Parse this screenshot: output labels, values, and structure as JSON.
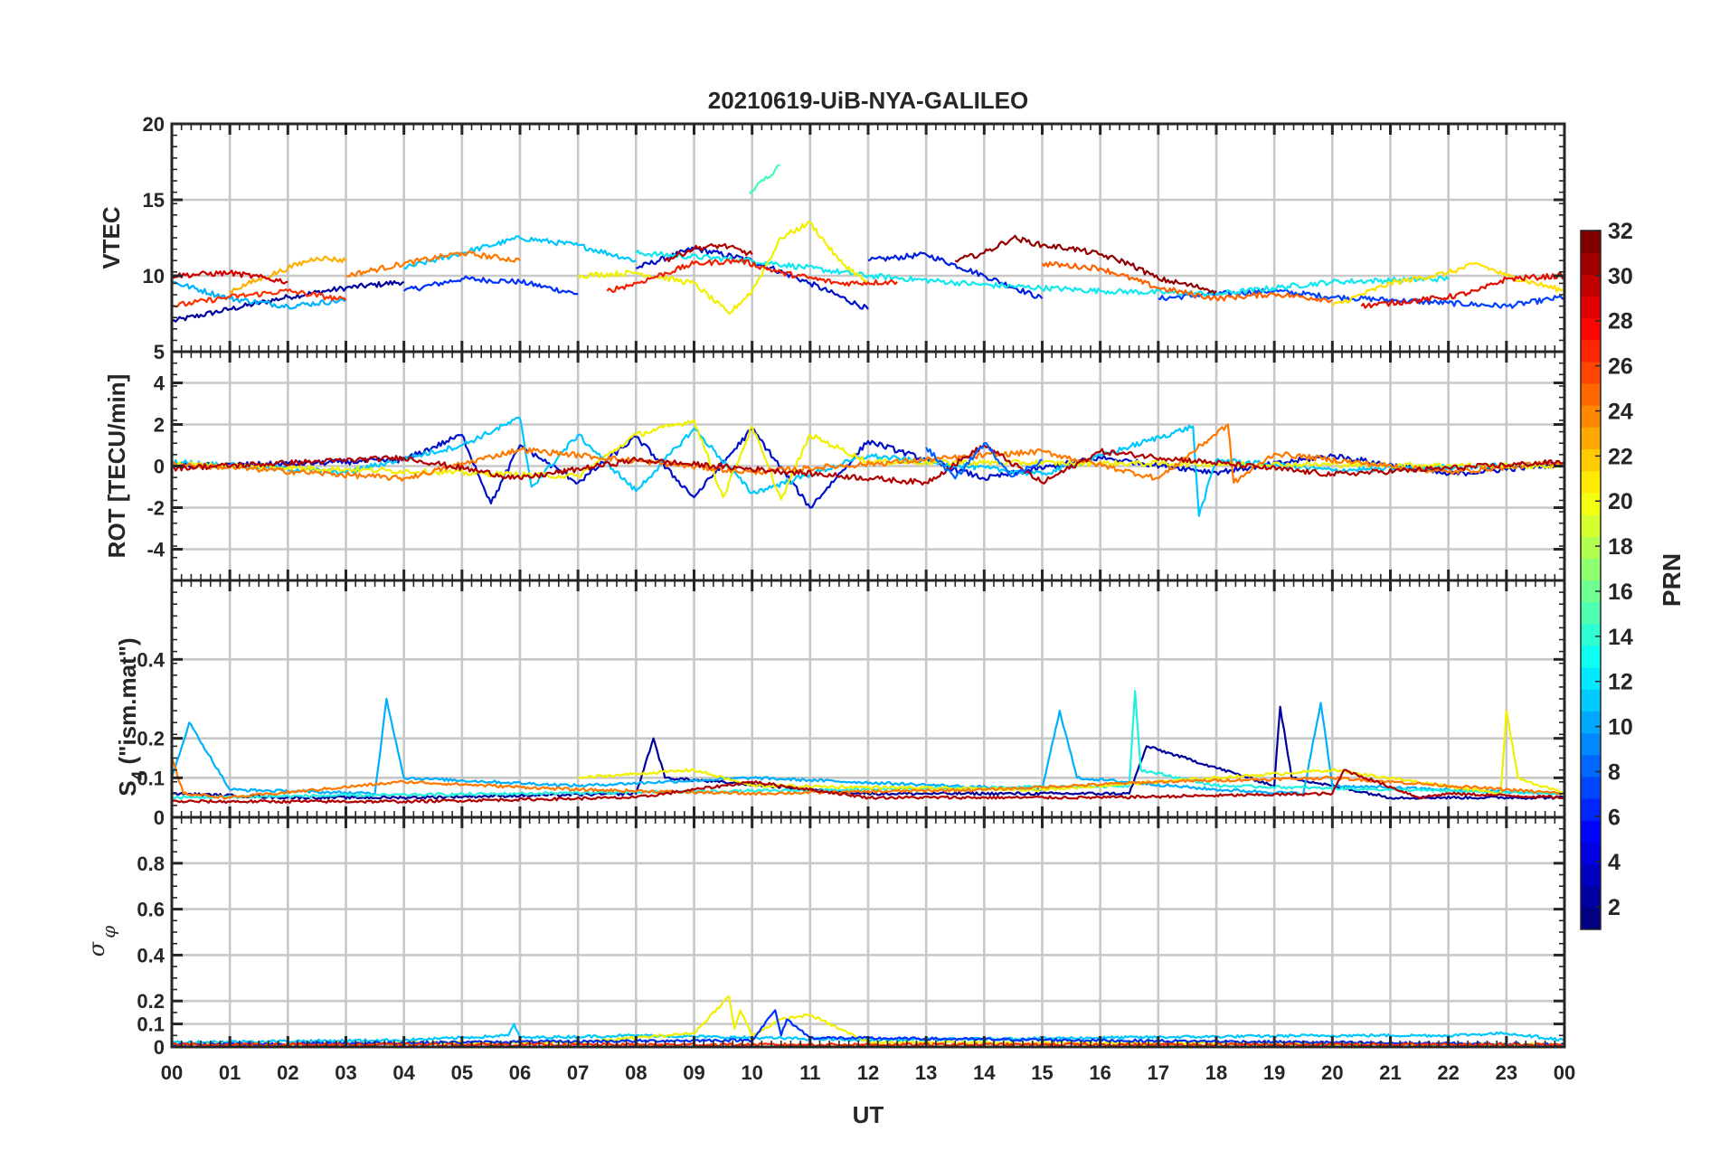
{
  "chart_data": {
    "type": "line",
    "title": "20210619-UiB-NYA-GALILEO",
    "xlabel": "UT",
    "x_tick_labels": [
      "00",
      "01",
      "02",
      "03",
      "04",
      "05",
      "06",
      "07",
      "08",
      "09",
      "10",
      "11",
      "12",
      "13",
      "14",
      "15",
      "16",
      "17",
      "18",
      "19",
      "20",
      "21",
      "22",
      "23",
      "00"
    ],
    "xlim_hours": [
      0,
      24
    ],
    "grid": true,
    "colorbar": {
      "label": "PRN",
      "range": [
        1,
        32
      ],
      "colormap": "jet",
      "ticks": [
        "2",
        "4",
        "6",
        "8",
        "10",
        "12",
        "14",
        "16",
        "18",
        "20",
        "22",
        "24",
        "26",
        "28",
        "30",
        "32"
      ]
    },
    "panels": [
      {
        "ylabel": "VTEC",
        "ylim": [
          5,
          20
        ],
        "yticks": [
          5,
          10,
          15,
          20
        ],
        "ytick_labels": [
          "5",
          "10",
          "15",
          "20"
        ],
        "series": [
          {
            "prn": 2,
            "color": "#00009c",
            "x": [
              0.0,
              1.0,
              2.0,
              3.0,
              4.0
            ],
            "y": [
              7.0,
              7.8,
              8.6,
              9.2,
              9.6
            ]
          },
          {
            "prn": 5,
            "color": "#0030ff",
            "x": [
              4.0,
              5.0,
              6.0,
              7.0
            ],
            "y": [
              9.0,
              9.8,
              9.6,
              8.8
            ]
          },
          {
            "prn": 3,
            "color": "#0010c8",
            "x": [
              8.0,
              9.0,
              10.0,
              11.0,
              12.0
            ],
            "y": [
              10.5,
              11.8,
              11.0,
              9.5,
              7.8
            ]
          },
          {
            "prn": 4,
            "color": "#0020e0",
            "x": [
              12.0,
              13.0,
              14.0,
              15.0
            ],
            "y": [
              11.0,
              11.4,
              10.0,
              8.5
            ]
          },
          {
            "prn": 6,
            "color": "#0040ff",
            "x": [
              17.0,
              18.0,
              19.0,
              20.0,
              21.0,
              22.0,
              23.0,
              24.0
            ],
            "y": [
              8.5,
              8.8,
              9.0,
              8.6,
              8.4,
              8.2,
              8.0,
              8.6
            ]
          },
          {
            "prn": 12,
            "color": "#00c8ff",
            "x": [
              4.0,
              5.0,
              6.0,
              7.0,
              8.0
            ],
            "y": [
              10.5,
              11.5,
              12.5,
              12.0,
              11.0
            ]
          },
          {
            "prn": 11,
            "color": "#00b0ff",
            "x": [
              0.0,
              1.0,
              2.0,
              3.0
            ],
            "y": [
              9.6,
              8.5,
              8.0,
              8.4
            ]
          },
          {
            "prn": 13,
            "color": "#10e8f0",
            "x": [
              8.0,
              10.0,
              12.0,
              14.0,
              16.0,
              18.0,
              20.0,
              22.0
            ],
            "y": [
              11.5,
              11.0,
              10.0,
              9.4,
              9.0,
              8.8,
              9.6,
              9.8
            ]
          },
          {
            "prn": 15,
            "color": "#40ffb0",
            "x": [
              9.95,
              10.0,
              10.4,
              10.48
            ],
            "y": [
              15.5,
              15.6,
              17.0,
              17.3
            ]
          },
          {
            "prn": 20,
            "color": "#f0f000",
            "x": [
              7.0,
              8.0,
              9.0,
              9.6,
              10.0,
              10.5,
              11.0,
              11.5,
              12.0
            ],
            "y": [
              10.0,
              10.2,
              9.5,
              7.5,
              9.0,
              12.5,
              13.5,
              11.0,
              9.5
            ]
          },
          {
            "prn": 21,
            "color": "#ffe000",
            "x": [
              20.0,
              21.0,
              22.0,
              22.5,
              23.0,
              24.0
            ],
            "y": [
              8.0,
              9.5,
              10.2,
              10.8,
              10.0,
              9.0
            ]
          },
          {
            "prn": 22,
            "color": "#ffb000",
            "x": [
              1.0,
              2.0,
              2.5,
              3.0
            ],
            "y": [
              9.0,
              10.5,
              11.2,
              11.0
            ]
          },
          {
            "prn": 24,
            "color": "#ff7800",
            "x": [
              3.0,
              4.0,
              5.0,
              6.0
            ],
            "y": [
              10.0,
              10.8,
              11.5,
              11.0
            ]
          },
          {
            "prn": 25,
            "color": "#ff6000",
            "x": [
              15.0,
              16.0,
              17.0,
              18.0,
              19.0,
              20.0
            ],
            "y": [
              10.8,
              10.5,
              9.2,
              8.5,
              8.8,
              8.4
            ]
          },
          {
            "prn": 27,
            "color": "#ff3000",
            "x": [
              0.0,
              1.0,
              2.0,
              3.0
            ],
            "y": [
              8.0,
              8.6,
              9.0,
              8.4
            ]
          },
          {
            "prn": 28,
            "color": "#f02000",
            "x": [
              7.5,
              8.0,
              9.0,
              9.8,
              10.5,
              11.5,
              12.5
            ],
            "y": [
              9.0,
              9.5,
              10.8,
              11.0,
              10.2,
              9.5,
              9.6
            ]
          },
          {
            "prn": 30,
            "color": "#d00000",
            "x": [
              0.0,
              1.0,
              2.0
            ],
            "y": [
              10.0,
              10.2,
              9.6
            ]
          },
          {
            "prn": 31,
            "color": "#b00000",
            "x": [
              8.5,
              9.0,
              9.5,
              10.0
            ],
            "y": [
              11.0,
              11.8,
              12.0,
              11.4
            ]
          },
          {
            "prn": 32,
            "color": "#900000",
            "x": [
              13.5,
              14.0,
              14.5,
              15.0,
              15.5,
              16.0,
              16.5,
              17.0,
              18.0
            ],
            "y": [
              11.0,
              11.5,
              12.5,
              12.0,
              11.8,
              11.4,
              10.8,
              9.8,
              9.0
            ]
          },
          {
            "prn": 29,
            "color": "#e01000",
            "x": [
              20.5,
              21.0,
              22.0,
              22.5,
              23.0,
              23.5,
              24.0
            ],
            "y": [
              8.0,
              8.2,
              8.6,
              9.0,
              9.8,
              9.9,
              10.0
            ]
          }
        ]
      },
      {
        "ylabel": "ROT [TECU/min]",
        "ylim": [
          -5.5,
          5.5
        ],
        "yticks": [
          -4,
          -2,
          0,
          2,
          4
        ],
        "ytick_labels": [
          "-4",
          "-2",
          "0",
          "2",
          "4"
        ],
        "series": [
          {
            "prn": 3,
            "color": "#0010c8",
            "x": [
              0.0,
              2.0,
              4.0,
              5.0,
              5.5,
              6.0,
              7.0,
              8.0,
              9.0,
              10.0,
              11.0,
              12.0,
              14.0,
              16.0,
              18.0,
              20.0,
              22.0,
              24.0
            ],
            "y": [
              0.0,
              0.1,
              0.3,
              1.5,
              -1.8,
              1.0,
              -0.8,
              1.4,
              -1.5,
              1.8,
              -2.0,
              1.2,
              -0.6,
              0.4,
              -0.3,
              0.5,
              -0.4,
              0.1
            ]
          },
          {
            "prn": 12,
            "color": "#00c8ff",
            "x": [
              0.0,
              3.0,
              5.0,
              6.0,
              6.2,
              7.0,
              8.0,
              9.0,
              10.0,
              12.0,
              15.0,
              17.6,
              17.7,
              18.0,
              20.0,
              24.0
            ],
            "y": [
              0.2,
              -0.3,
              1.0,
              2.3,
              -1.0,
              1.5,
              -1.2,
              1.8,
              -1.3,
              0.5,
              -0.4,
              1.9,
              -2.4,
              0.3,
              -0.2,
              0.1
            ]
          },
          {
            "prn": 20,
            "color": "#f0f000",
            "x": [
              0.0,
              7.0,
              8.0,
              9.0,
              9.5,
              10.0,
              10.5,
              11.0,
              12.0,
              24.0
            ],
            "y": [
              0.1,
              -0.5,
              1.5,
              2.2,
              -1.5,
              1.9,
              -1.6,
              1.5,
              0.2,
              0.0
            ]
          },
          {
            "prn": 24,
            "color": "#ff7800",
            "x": [
              0.0,
              4.0,
              6.0,
              10.0,
              15.0,
              17.0,
              18.2,
              18.3,
              19.0,
              22.0,
              24.0
            ],
            "y": [
              0.1,
              -0.6,
              0.8,
              -0.3,
              0.7,
              -0.6,
              2.0,
              -0.8,
              0.6,
              -0.3,
              0.2
            ]
          },
          {
            "prn": 31,
            "color": "#b00000",
            "x": [
              0.0,
              4.0,
              6.0,
              8.0,
              13.0,
              14.0,
              15.0,
              16.0,
              20.0,
              24.0
            ],
            "y": [
              -0.1,
              0.4,
              -0.6,
              0.3,
              -0.8,
              1.0,
              -0.8,
              0.7,
              -0.4,
              0.2
            ]
          },
          {
            "prn": 8,
            "color": "#0060ff",
            "x": [
              13.0,
              13.5,
              14.0,
              14.5,
              15.0
            ],
            "y": [
              0.9,
              -0.6,
              1.1,
              -0.5,
              0.3
            ]
          }
        ]
      },
      {
        "ylabel": "S4 (\"ism.mat\")",
        "ylabel_main": "S",
        "ylabel_sub": "4",
        "ylabel_rest": " (\"ism.mat\")",
        "ylim": [
          0,
          0.6
        ],
        "yticks": [
          0,
          0.1,
          0.2,
          0.4
        ],
        "ytick_labels": [
          "0",
          "0.1",
          "0.2",
          "0.4"
        ],
        "series": [
          {
            "prn": 2,
            "color": "#00009c",
            "x": [
              0.0,
              2.0,
              4.0,
              8.0,
              8.3,
              8.5,
              12.0,
              16.5,
              16.8,
              19.0,
              19.1,
              19.3,
              21.0,
              24.0
            ],
            "y": [
              0.06,
              0.05,
              0.05,
              0.06,
              0.2,
              0.1,
              0.06,
              0.06,
              0.18,
              0.08,
              0.28,
              0.1,
              0.05,
              0.05
            ]
          },
          {
            "prn": 11,
            "color": "#00b0ff",
            "x": [
              0.0,
              0.3,
              1.0,
              3.5,
              3.7,
              4.0,
              7.0,
              10.0,
              15.0,
              15.3,
              15.6,
              18.0,
              19.5,
              19.8,
              20.0,
              24.0
            ],
            "y": [
              0.1,
              0.24,
              0.07,
              0.06,
              0.3,
              0.1,
              0.08,
              0.1,
              0.07,
              0.27,
              0.1,
              0.07,
              0.06,
              0.29,
              0.08,
              0.06
            ]
          },
          {
            "prn": 14,
            "color": "#20f0e0",
            "x": [
              0.0,
              6.0,
              12.0,
              16.5,
              16.6,
              16.7,
              18.0,
              24.0
            ],
            "y": [
              0.05,
              0.06,
              0.07,
              0.08,
              0.32,
              0.12,
              0.08,
              0.06
            ]
          },
          {
            "prn": 20,
            "color": "#f0f000",
            "x": [
              7.0,
              8.0,
              9.0,
              10.0,
              15.0,
              20.0,
              22.9,
              23.0,
              23.2,
              24.0
            ],
            "y": [
              0.1,
              0.11,
              0.12,
              0.08,
              0.07,
              0.12,
              0.06,
              0.27,
              0.1,
              0.06
            ]
          },
          {
            "prn": 24,
            "color": "#ff7800",
            "x": [
              0.0,
              0.2,
              1.0,
              4.0,
              7.0,
              10.0,
              14.0,
              17.0,
              20.0,
              24.0
            ],
            "y": [
              0.15,
              0.06,
              0.05,
              0.09,
              0.07,
              0.06,
              0.07,
              0.09,
              0.1,
              0.06
            ]
          },
          {
            "prn": 31,
            "color": "#b00000",
            "x": [
              0.0,
              4.0,
              8.0,
              9.0,
              10.0,
              12.0,
              16.0,
              20.0,
              20.2,
              21.5,
              22.0,
              24.0
            ],
            "y": [
              0.04,
              0.04,
              0.05,
              0.07,
              0.09,
              0.05,
              0.05,
              0.06,
              0.12,
              0.05,
              0.06,
              0.05
            ]
          }
        ]
      },
      {
        "ylabel": "σφ",
        "ylabel_main": "σ",
        "ylabel_sub": "φ",
        "ylim": [
          0,
          1.0
        ],
        "yticks": [
          0,
          0.1,
          0.2,
          0.4,
          0.6,
          0.8
        ],
        "ytick_labels": [
          "0",
          "0.1",
          "0.2",
          "0.4",
          "0.6",
          "0.8"
        ],
        "series": [
          {
            "prn": 12,
            "color": "#00c8ff",
            "x": [
              0.0,
              4.0,
              5.0,
              5.8,
              5.9,
              6.0,
              8.0,
              12.0,
              20.0,
              22.0,
              23.0,
              24.0
            ],
            "y": [
              0.02,
              0.03,
              0.04,
              0.05,
              0.1,
              0.04,
              0.05,
              0.03,
              0.05,
              0.05,
              0.06,
              0.03
            ]
          },
          {
            "prn": 20,
            "color": "#f0f000",
            "x": [
              0.0,
              7.0,
              8.0,
              9.0,
              9.6,
              9.7,
              9.8,
              10.0,
              10.5,
              11.0,
              12.0,
              24.0
            ],
            "y": [
              0.01,
              0.02,
              0.04,
              0.06,
              0.22,
              0.08,
              0.16,
              0.05,
              0.12,
              0.14,
              0.02,
              0.01
            ]
          },
          {
            "prn": 5,
            "color": "#0030ff",
            "x": [
              0.0,
              10.0,
              10.4,
              10.5,
              10.6,
              11.0,
              24.0
            ],
            "y": [
              0.01,
              0.03,
              0.16,
              0.05,
              0.12,
              0.04,
              0.01
            ]
          },
          {
            "prn": 27,
            "color": "#ff3000",
            "x": [
              0.0,
              24.0
            ],
            "y": [
              0.01,
              0.01
            ]
          }
        ]
      }
    ]
  }
}
